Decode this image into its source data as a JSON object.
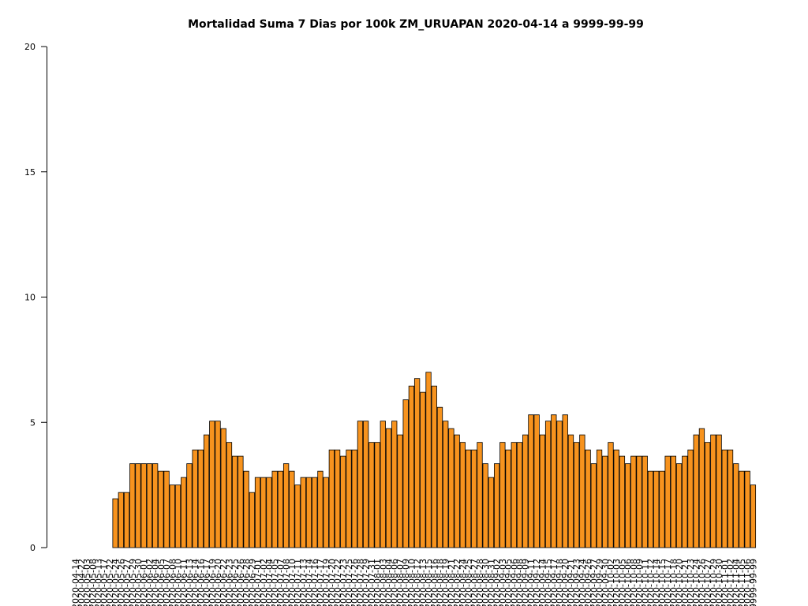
{
  "chart_data": {
    "type": "bar",
    "title": "Mortalidad Suma 7 Dias por 100k ZM_URUAPAN 2020-04-14 a 9999-99-99",
    "color": "#f7931e",
    "ylim": [
      0,
      20
    ],
    "yticks": [
      0,
      5,
      10,
      15,
      20
    ],
    "categories": [
      "2020-04-14",
      "2020-04-22",
      "2020-05-03",
      "2020-05-08",
      "2020-05-13",
      "2020-05-17",
      "2020-05-22",
      "2020-05-24",
      "2020-05-26",
      "2020-05-27",
      "2020-05-29",
      "2020-05-30",
      "2020-06-01",
      "2020-06-02",
      "2020-06-04",
      "2020-06-05",
      "2020-06-07",
      "2020-06-08",
      "2020-06-10",
      "2020-06-11",
      "2020-06-13",
      "2020-06-14",
      "2020-06-16",
      "2020-06-17",
      "2020-06-19",
      "2020-06-20",
      "2020-06-22",
      "2020-06-23",
      "2020-06-25",
      "2020-06-26",
      "2020-06-28",
      "2020-06-29",
      "2020-07-01",
      "2020-07-02",
      "2020-07-04",
      "2020-07-05",
      "2020-07-07",
      "2020-07-08",
      "2020-07-10",
      "2020-07-11",
      "2020-07-13",
      "2020-07-14",
      "2020-07-16",
      "2020-07-17",
      "2020-07-19",
      "2020-07-20",
      "2020-07-22",
      "2020-07-23",
      "2020-07-25",
      "2020-07-26",
      "2020-07-28",
      "2020-07-29",
      "2020-07-31",
      "2020-08-01",
      "2020-08-03",
      "2020-08-04",
      "2020-08-06",
      "2020-08-07",
      "2020-08-09",
      "2020-08-10",
      "2020-08-12",
      "2020-08-13",
      "2020-08-15",
      "2020-08-16",
      "2020-08-18",
      "2020-08-19",
      "2020-08-21",
      "2020-08-22",
      "2020-08-24",
      "2020-08-25",
      "2020-08-27",
      "2020-08-28",
      "2020-08-30",
      "2020-08-31",
      "2020-09-02",
      "2020-09-03",
      "2020-09-05",
      "2020-09-06",
      "2020-09-08",
      "2020-09-09",
      "2020-09-11",
      "2020-09-12",
      "2020-09-14",
      "2020-09-15",
      "2020-09-17",
      "2020-09-18",
      "2020-09-20",
      "2020-09-21",
      "2020-09-23",
      "2020-09-24",
      "2020-09-26",
      "2020-09-27",
      "2020-09-29",
      "2020-09-30",
      "2020-10-02",
      "2020-10-03",
      "2020-10-05",
      "2020-10-06",
      "2020-10-08",
      "2020-10-09",
      "2020-10-11",
      "2020-10-12",
      "2020-10-14",
      "2020-10-15",
      "2020-10-17",
      "2020-10-18",
      "2020-10-20",
      "2020-10-21",
      "2020-10-23",
      "2020-10-24",
      "2020-10-26",
      "2020-10-27",
      "2020-10-29",
      "2020-10-30",
      "2020-11-01",
      "2020-11-02",
      "2020-11-04",
      "2020-11-05",
      "2020-11-06",
      "9999-99-99"
    ],
    "values": [
      0,
      0,
      0,
      0,
      0,
      0,
      0,
      1.95,
      2.2,
      2.2,
      3.35,
      3.35,
      3.35,
      3.35,
      3.35,
      3.05,
      3.05,
      2.5,
      2.5,
      2.8,
      3.35,
      3.9,
      3.9,
      4.5,
      5.05,
      5.05,
      4.75,
      4.2,
      3.65,
      3.65,
      3.05,
      2.2,
      2.8,
      2.8,
      2.8,
      3.05,
      3.05,
      3.35,
      3.05,
      2.5,
      2.8,
      2.8,
      2.8,
      3.05,
      2.8,
      3.9,
      3.9,
      3.65,
      3.9,
      3.9,
      5.05,
      5.05,
      4.2,
      4.2,
      5.05,
      4.75,
      5.05,
      4.5,
      5.9,
      6.45,
      6.75,
      6.2,
      7.0,
      6.45,
      5.6,
      5.05,
      4.75,
      4.5,
      4.2,
      3.9,
      3.9,
      4.2,
      3.35,
      2.8,
      3.35,
      4.2,
      3.9,
      4.2,
      4.2,
      4.5,
      5.3,
      5.3,
      4.5,
      5.05,
      5.3,
      5.05,
      5.3,
      4.5,
      4.2,
      4.5,
      3.9,
      3.35,
      3.9,
      3.65,
      4.2,
      3.9,
      3.65,
      3.35,
      3.65,
      3.65,
      3.65,
      3.05,
      3.05,
      3.05,
      3.65,
      3.65,
      3.35,
      3.65,
      3.9,
      4.5,
      4.75,
      4.2,
      4.5,
      4.5,
      3.9,
      3.9,
      3.35,
      3.05,
      3.05,
      2.5
    ]
  }
}
